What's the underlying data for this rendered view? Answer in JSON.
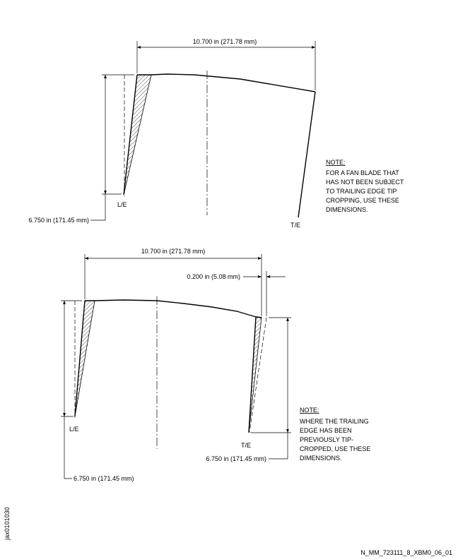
{
  "upper_view": {
    "width_dim": "10.700 in (271.78 mm)",
    "height_dim": "6.750 in (171.45 mm)",
    "le_label": "L/E",
    "te_label": "T/E",
    "note": {
      "heading": "NOTE:",
      "lines": [
        "FOR A FAN BLADE THAT",
        "HAS NOT BEEN SUBJECT",
        "TO TRAILING EDGE TIP",
        "CROPPING, USE THESE",
        "DIMENSIONS."
      ]
    }
  },
  "lower_view": {
    "width_dim": "10.700 in (271.78 mm)",
    "crop_dim": "0.200 in (5.08 mm)",
    "le_height_dim": "6.750 in (171.45 mm)",
    "te_height_dim": "6.750 in (171.45 mm)",
    "le_label": "L/E",
    "te_label": "T/E",
    "note": {
      "heading": "NOTE:",
      "lines": [
        "WHERE THE TRAILING",
        "EDGE HAS BEEN",
        "PREVIOUSLY TIP-",
        "CROPPED, USE THESE",
        "DIMENSIONS."
      ]
    }
  },
  "side_id": "jax0101030",
  "footer_id": "N_MM_723111_8_XBM0_06_01"
}
